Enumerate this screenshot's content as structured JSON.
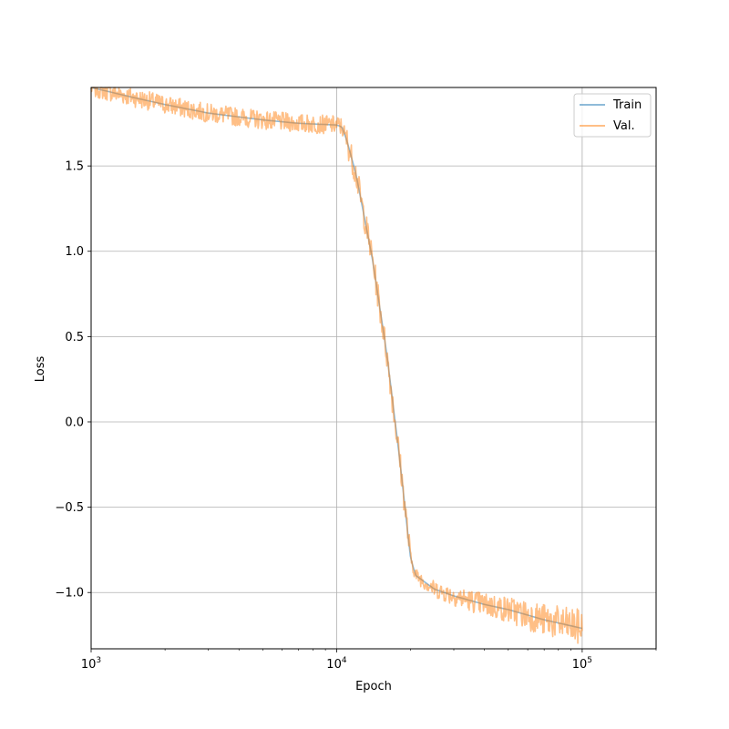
{
  "chart_data": {
    "type": "line",
    "title": "",
    "xlabel": "Epoch",
    "ylabel": "Loss",
    "xscale": "log",
    "xlim": [
      1000,
      200000
    ],
    "ylim": [
      -1.33,
      1.96
    ],
    "grid": true,
    "legend_position": "top-right",
    "x_ticks": [
      {
        "value": 1000,
        "base": "10",
        "exp": "3"
      },
      {
        "value": 10000,
        "base": "10",
        "exp": "4"
      },
      {
        "value": 100000,
        "base": "10",
        "exp": "5"
      }
    ],
    "y_ticks": [
      {
        "value": 1.5,
        "label": "1.5"
      },
      {
        "value": 1.0,
        "label": "1.0"
      },
      {
        "value": 0.5,
        "label": "0.5"
      },
      {
        "value": 0.0,
        "label": "0.0"
      },
      {
        "value": -0.5,
        "label": "−0.5"
      },
      {
        "value": -1.0,
        "label": "−1.0"
      }
    ],
    "series": [
      {
        "name": "Train",
        "color": "#1f77b4",
        "opacity": 0.5,
        "noise": 0,
        "anchors": [
          [
            1000,
            1.96
          ],
          [
            1500,
            1.9
          ],
          [
            2000,
            1.86
          ],
          [
            3000,
            1.81
          ],
          [
            5000,
            1.77
          ],
          [
            7000,
            1.75
          ],
          [
            10000,
            1.74
          ],
          [
            10500,
            1.73
          ],
          [
            11000,
            1.65
          ],
          [
            12000,
            1.45
          ],
          [
            14000,
            0.95
          ],
          [
            16000,
            0.4
          ],
          [
            18000,
            -0.2
          ],
          [
            20000,
            -0.8
          ],
          [
            21000,
            -0.9
          ],
          [
            25000,
            -0.98
          ],
          [
            30000,
            -1.02
          ],
          [
            40000,
            -1.07
          ],
          [
            50000,
            -1.1
          ],
          [
            70000,
            -1.16
          ],
          [
            100000,
            -1.21
          ]
        ]
      },
      {
        "name": "Val.",
        "color": "#ff7f0e",
        "opacity": 0.5,
        "noise": 1,
        "anchors": [
          [
            1000,
            1.96
          ],
          [
            1500,
            1.9
          ],
          [
            2000,
            1.86
          ],
          [
            3000,
            1.81
          ],
          [
            5000,
            1.77
          ],
          [
            7000,
            1.75
          ],
          [
            10000,
            1.74
          ],
          [
            10500,
            1.73
          ],
          [
            11000,
            1.65
          ],
          [
            12000,
            1.45
          ],
          [
            14000,
            0.95
          ],
          [
            16000,
            0.4
          ],
          [
            18000,
            -0.2
          ],
          [
            20000,
            -0.8
          ],
          [
            21000,
            -0.9
          ],
          [
            25000,
            -0.98
          ],
          [
            30000,
            -1.02
          ],
          [
            40000,
            -1.07
          ],
          [
            50000,
            -1.1
          ],
          [
            70000,
            -1.16
          ],
          [
            100000,
            -1.21
          ]
        ]
      }
    ]
  }
}
